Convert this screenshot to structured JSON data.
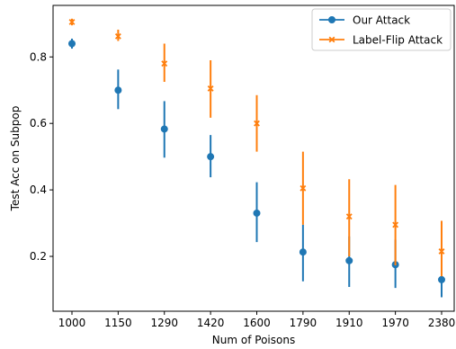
{
  "chart_data": {
    "type": "scatter",
    "title": "",
    "xlabel": "Num of Poisons",
    "ylabel": "Test Acc on Subpop",
    "categories": [
      "1000",
      "1150",
      "1290",
      "1420",
      "1600",
      "1790",
      "1910",
      "1970",
      "2380"
    ],
    "ylim": [
      0.035,
      0.955
    ],
    "yticks": [
      "0.2",
      "0.4",
      "0.6",
      "0.8"
    ],
    "grid": false,
    "legend_position": "top-right",
    "series": [
      {
        "name": "Our Attack",
        "color": "#1f77b4",
        "marker": "circle",
        "values": [
          0.84,
          0.7,
          0.583,
          0.5,
          0.33,
          0.213,
          0.187,
          0.175,
          0.13
        ],
        "lower": [
          0.825,
          0.643,
          0.497,
          0.438,
          0.243,
          0.125,
          0.108,
          0.105,
          0.077
        ],
        "upper": [
          0.855,
          0.762,
          0.667,
          0.565,
          0.423,
          0.295,
          0.26,
          0.25,
          0.18
        ]
      },
      {
        "name": "Label-Flip Attack",
        "color": "#ff7f0e",
        "marker": "x",
        "values": [
          0.905,
          0.862,
          0.78,
          0.705,
          0.6,
          0.405,
          0.32,
          0.295,
          0.215
        ],
        "lower": [
          0.895,
          0.848,
          0.725,
          0.617,
          0.515,
          0.295,
          0.2,
          0.173,
          0.14
        ],
        "upper": [
          0.915,
          0.882,
          0.84,
          0.79,
          0.685,
          0.515,
          0.432,
          0.415,
          0.307
        ]
      }
    ]
  }
}
